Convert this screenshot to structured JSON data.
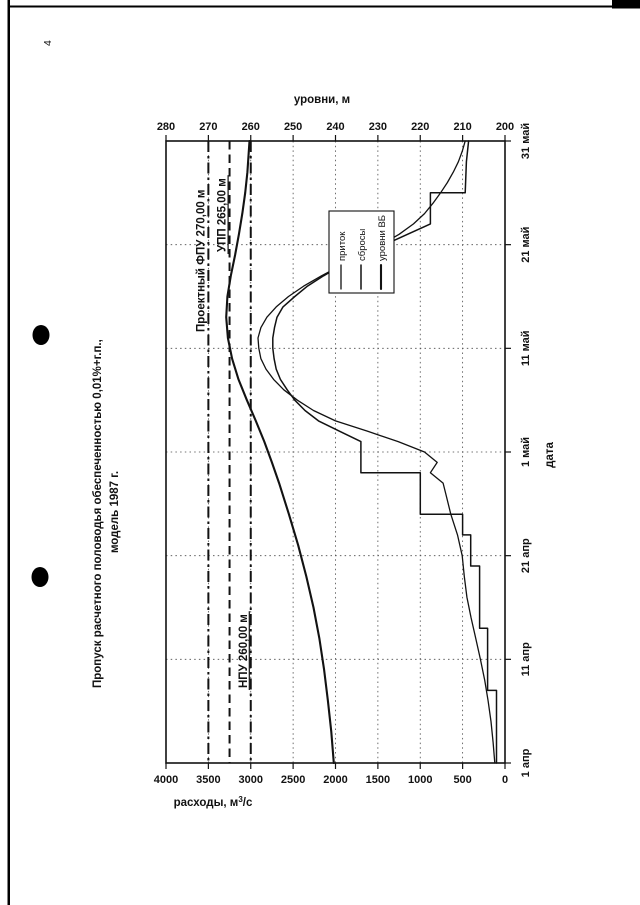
{
  "page": {
    "number": "4"
  },
  "chart": {
    "title_line1": "Пропуск расчетного половодья обеспеченностью 0,01%+г.п.,",
    "title_line2": "модель 1987 г.",
    "flow_axis_label_main": "расходы, м",
    "flow_axis_label_sup": "3",
    "flow_axis_label_rest": "/с",
    "level_axis_label": "уровни, м",
    "date_axis_label": "дата",
    "legend": {
      "items": [
        "приток",
        "сбросы",
        "уровни ВБ"
      ]
    }
  },
  "chart_data": {
    "type": "line",
    "title": "Пропуск расчетного половодья обеспеченностью 0,01%+г.п., модель 1987 г.",
    "orientation": "rotated 90 degrees counter-clockwise on portrait page",
    "grid": "dotted",
    "legend_position": "center-right",
    "x_axis": {
      "label": "дата",
      "tick_labels": [
        "1 апр",
        "11 апр",
        "21 апр",
        "1 май",
        "11 май",
        "21 май",
        "31 май"
      ],
      "tick_days": [
        0,
        10,
        20,
        30,
        40,
        50,
        60
      ],
      "day_range": [
        0,
        60
      ]
    },
    "flow_axis": {
      "label": "расходы, м3/с",
      "min": 0,
      "max": 4000,
      "tick_step": 500,
      "ticks": [
        4000,
        3500,
        3000,
        2500,
        2000,
        1500,
        1000,
        500,
        0
      ]
    },
    "level_axis": {
      "label": "уровни, м",
      "min": 200,
      "max": 280,
      "tick_step": 10,
      "ticks": [
        280,
        270,
        260,
        250,
        240,
        230,
        220,
        210,
        200
      ]
    },
    "ref_lines": [
      {
        "label": "Проектный ФПУ 270,00 м",
        "value": 270.0,
        "axis": "level",
        "style": "dashdot",
        "underline": false
      },
      {
        "label": "УПП 265,00 м",
        "value": 265.0,
        "axis": "level",
        "style": "dashed",
        "underline": true
      },
      {
        "label": "НПУ 260,00 м",
        "value": 260.0,
        "axis": "level",
        "style": "dashdot",
        "underline": true
      }
    ],
    "series": [
      {
        "name": "приток",
        "axis": "flow",
        "unit": "м3/с",
        "points": [
          [
            0,
            120
          ],
          [
            2,
            140
          ],
          [
            4,
            165
          ],
          [
            6,
            200
          ],
          [
            8,
            240
          ],
          [
            10,
            290
          ],
          [
            12,
            345
          ],
          [
            14,
            400
          ],
          [
            16,
            450
          ],
          [
            18,
            480
          ],
          [
            20,
            505
          ],
          [
            22,
            560
          ],
          [
            24,
            640
          ],
          [
            26,
            700
          ],
          [
            27,
            730
          ],
          [
            28,
            880
          ],
          [
            29,
            800
          ],
          [
            30,
            950
          ],
          [
            31,
            1260
          ],
          [
            32,
            1620
          ],
          [
            33,
            2000
          ],
          [
            34,
            2260
          ],
          [
            35,
            2450
          ],
          [
            36,
            2610
          ],
          [
            37,
            2730
          ],
          [
            38,
            2820
          ],
          [
            39,
            2880
          ],
          [
            40,
            2905
          ],
          [
            41,
            2915
          ],
          [
            42,
            2880
          ],
          [
            43,
            2810
          ],
          [
            44,
            2700
          ],
          [
            45,
            2555
          ],
          [
            46,
            2375
          ],
          [
            47,
            2165
          ],
          [
            48,
            1935
          ],
          [
            49,
            1700
          ],
          [
            50,
            1460
          ],
          [
            51,
            1250
          ],
          [
            52,
            1080
          ],
          [
            53,
            950
          ],
          [
            54,
            850
          ],
          [
            55,
            760
          ],
          [
            56,
            680
          ],
          [
            57,
            610
          ],
          [
            58,
            550
          ],
          [
            59,
            505
          ],
          [
            60,
            470
          ]
        ]
      },
      {
        "name": "сбросы",
        "axis": "flow",
        "unit": "м3/с",
        "points": [
          [
            0,
            100
          ],
          [
            7,
            100
          ],
          [
            7,
            205
          ],
          [
            13,
            205
          ],
          [
            13,
            300
          ],
          [
            19,
            300
          ],
          [
            19,
            405
          ],
          [
            22,
            405
          ],
          [
            22,
            500
          ],
          [
            24,
            500
          ],
          [
            24,
            1000
          ],
          [
            28,
            1000
          ],
          [
            28,
            1700
          ],
          [
            31,
            1700
          ],
          [
            32,
            1950
          ],
          [
            33,
            2200
          ],
          [
            34,
            2360
          ],
          [
            35,
            2480
          ],
          [
            36,
            2570
          ],
          [
            37,
            2650
          ],
          [
            38,
            2700
          ],
          [
            39,
            2725
          ],
          [
            40,
            2740
          ],
          [
            41,
            2740
          ],
          [
            42,
            2720
          ],
          [
            43,
            2690
          ],
          [
            44,
            2620
          ],
          [
            45,
            2480
          ],
          [
            46,
            2330
          ],
          [
            47,
            2140
          ],
          [
            48,
            1930
          ],
          [
            49,
            1700
          ],
          [
            50,
            1420
          ],
          [
            51,
            1150
          ],
          [
            52,
            880
          ],
          [
            55,
            880
          ],
          [
            55,
            470
          ],
          [
            58,
            455
          ],
          [
            60,
            430
          ]
        ]
      },
      {
        "name": "уровни ВБ",
        "axis": "level",
        "unit": "м",
        "points": [
          [
            0,
            240.4
          ],
          [
            3,
            241.0
          ],
          [
            6,
            241.8
          ],
          [
            9,
            242.7
          ],
          [
            12,
            243.8
          ],
          [
            15,
            245.2
          ],
          [
            18,
            246.9
          ],
          [
            21,
            248.8
          ],
          [
            24,
            251.0
          ],
          [
            27,
            253.3
          ],
          [
            29,
            255.0
          ],
          [
            31,
            256.8
          ],
          [
            33,
            258.8
          ],
          [
            35,
            260.9
          ],
          [
            37,
            262.9
          ],
          [
            39,
            264.4
          ],
          [
            41,
            265.4
          ],
          [
            43,
            265.8
          ],
          [
            45,
            265.5
          ],
          [
            47,
            264.7
          ],
          [
            49,
            263.7
          ],
          [
            51,
            262.8
          ],
          [
            53,
            262.0
          ],
          [
            55,
            261.3
          ],
          [
            57,
            260.8
          ],
          [
            60,
            260.3
          ]
        ]
      }
    ]
  }
}
